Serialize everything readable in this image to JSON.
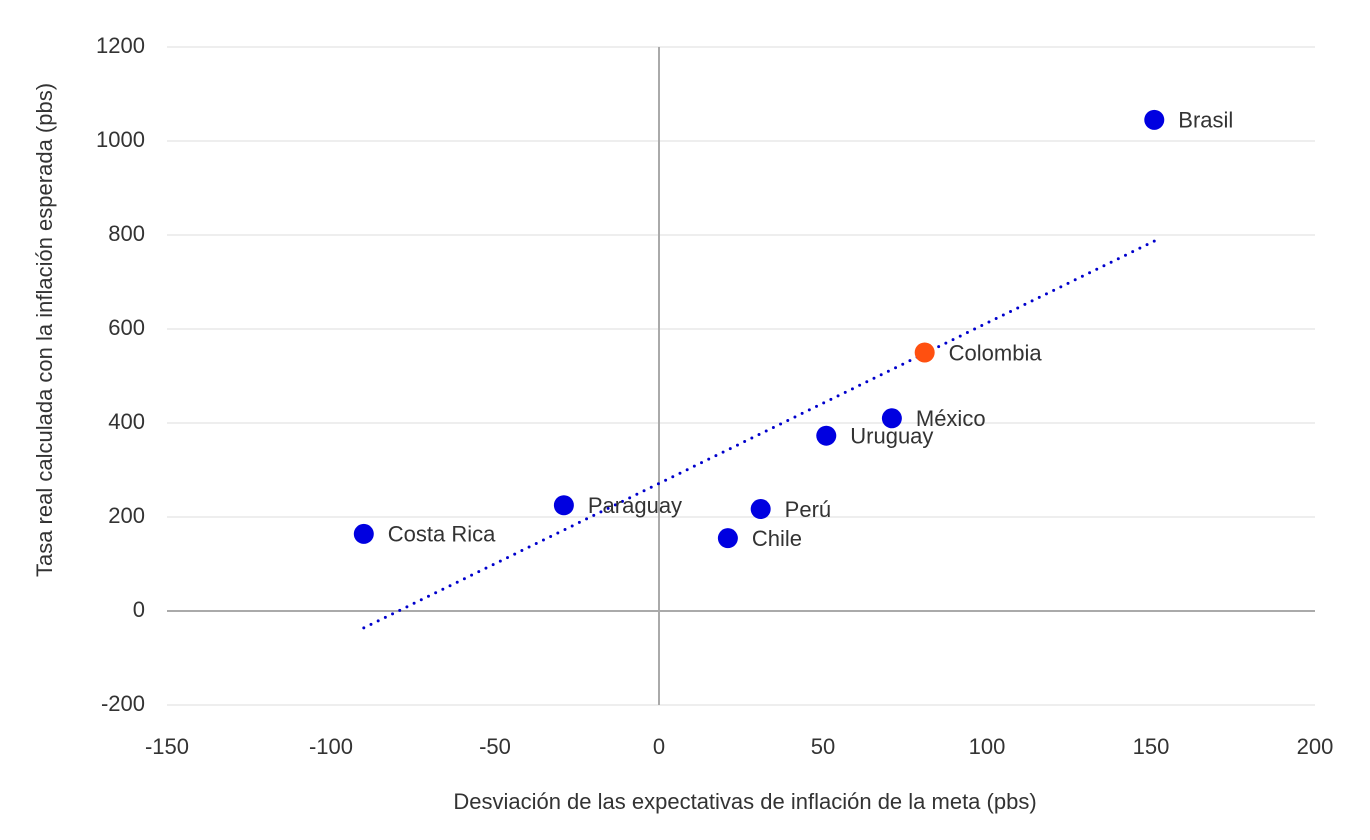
{
  "chart_data": {
    "type": "scatter",
    "xlabel": "Desviación de las expectativas de inflación de la meta (pbs)",
    "ylabel": "Tasa real calculada con la inflación esperada (pbs)",
    "labels": [
      "Brasil",
      "Colombia",
      "México",
      "Uruguay",
      "Perú",
      "Chile",
      "Paraguay",
      "Costa Rica"
    ],
    "x": [
      151,
      81,
      71,
      51,
      31,
      21,
      -29,
      -90
    ],
    "values": [
      1045,
      550,
      410,
      373,
      217,
      155,
      225,
      164
    ],
    "colors": [
      "#0000e0",
      "#ff5010",
      "#0000e0",
      "#0000e0",
      "#0000e0",
      "#0000e0",
      "#0000e0",
      "#0000e0"
    ],
    "trendline": {
      "x": [
        -90,
        151
      ],
      "values": [
        -36,
        787
      ],
      "color": "#0000cc"
    },
    "xlim": [
      -150,
      200
    ],
    "xticks": [
      -150,
      -100,
      -50,
      0,
      50,
      100,
      150,
      200
    ],
    "ylim": [
      -200,
      1200
    ],
    "yticks": [
      -200,
      0,
      200,
      400,
      600,
      800,
      1000,
      1200
    ],
    "grid": true
  }
}
